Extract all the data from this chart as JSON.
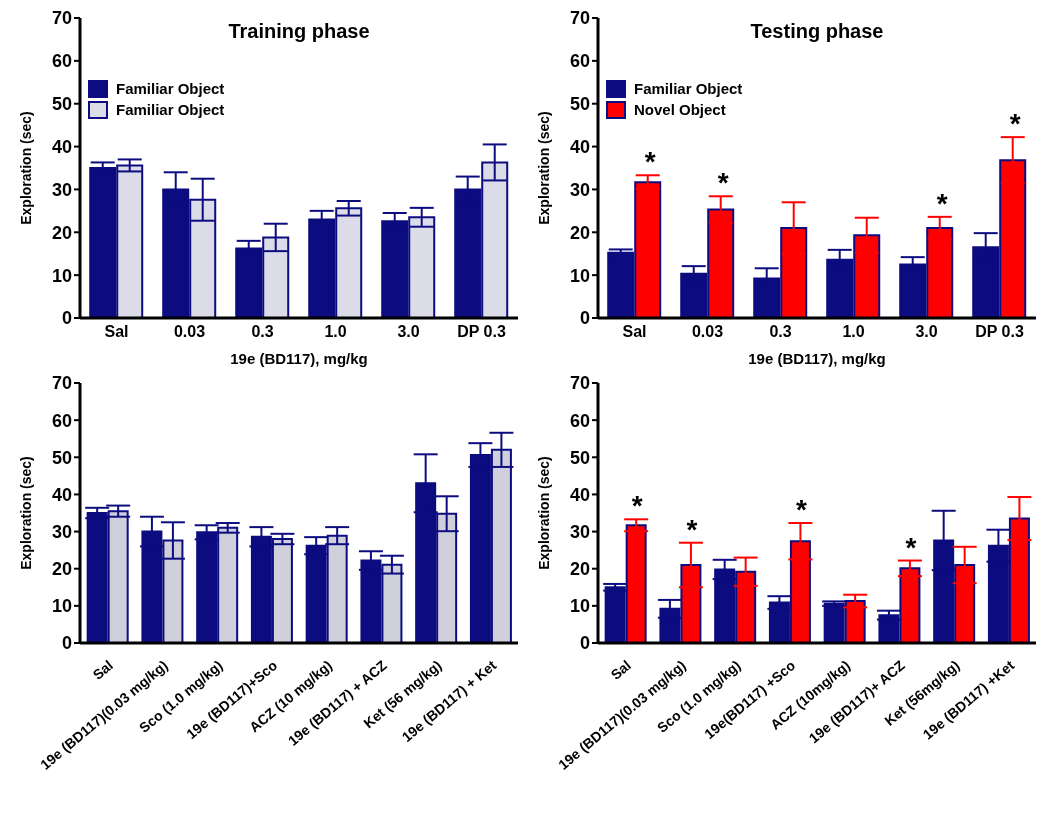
{
  "chart_data": [
    {
      "type": "bar",
      "title": "Training phase",
      "xlabel": "19e (BD117), mg/kg",
      "ylabel": "Exploration (sec)",
      "categories": [
        "Sal",
        "0.03",
        "0.3",
        "1.0",
        "3.0",
        "DP 0.3"
      ],
      "series": [
        {
          "name": "Familiar Object",
          "color": "#0c0c80",
          "values": [
            35,
            30,
            16.2,
            23,
            22.6,
            30
          ],
          "errors": [
            1.3,
            4,
            1.8,
            2,
            1.9,
            3
          ]
        },
        {
          "name": "Familiar Object",
          "color": "#dcdce8",
          "values": [
            35.6,
            27.6,
            18.8,
            25.6,
            23.5,
            36.3
          ],
          "errors": [
            1.4,
            4.9,
            3.2,
            1.7,
            2.2,
            4.2
          ]
        }
      ],
      "ylim": [
        0,
        70
      ],
      "yticks": [
        0,
        10,
        20,
        30,
        40,
        50,
        60,
        70
      ],
      "legend": "top left"
    },
    {
      "type": "bar",
      "title": "Testing phase",
      "xlabel": "19e (BD117), mg/kg",
      "ylabel": "Exploration (sec)",
      "categories": [
        "Sal",
        "0.03",
        "0.3",
        "1.0",
        "3.0",
        "DP 0.3"
      ],
      "series": [
        {
          "name": "Familiar Object",
          "color": "#0c0c80",
          "values": [
            15.2,
            10.3,
            9.2,
            13.6,
            12.5,
            16.5
          ],
          "errors": [
            0.8,
            1.8,
            2.4,
            2.3,
            1.7,
            3.3
          ]
        },
        {
          "name": "Novel Object",
          "color": "#ff0000",
          "values": [
            31.7,
            25.3,
            21,
            19.3,
            21,
            36.8
          ],
          "errors": [
            1.6,
            3.1,
            6,
            4.1,
            2.6,
            5.4
          ]
        }
      ],
      "ylim": [
        0,
        70
      ],
      "yticks": [
        0,
        10,
        20,
        30,
        40,
        50,
        60,
        70
      ],
      "legend": "top left",
      "annotations": [
        {
          "text": "*",
          "x": "Sal",
          "y": 31.7
        },
        {
          "text": "*",
          "x": "0.03",
          "y": 25.3
        },
        {
          "text": "*",
          "x": "3.0",
          "y": 21
        },
        {
          "text": "*",
          "x": "DP 0.3",
          "y": 36.8
        }
      ]
    },
    {
      "type": "bar",
      "ylabel": "Exploration (sec)",
      "categories": [
        "Sal",
        "19e (BD117)(0.03 mg/kg)",
        "Sco (1.0 mg/kg)",
        "19e (BD117)+Sco",
        "ACZ (10 mg/kg)",
        "19e (BD117) + ACZ",
        "Ket (56 mg/kg)",
        "19e (BD117) + Ket"
      ],
      "series": [
        {
          "color": "#0c0c80",
          "values": [
            35,
            30,
            29.8,
            28.6,
            26.2,
            22.2,
            43,
            50.6
          ],
          "errors": [
            1.4,
            4,
            1.9,
            2.6,
            2.3,
            2.5,
            7.8,
            3.2
          ]
        },
        {
          "color": "#d0d0dc",
          "values": [
            35.5,
            27.6,
            31,
            28,
            28.9,
            21.1,
            34.8,
            52
          ],
          "errors": [
            1.5,
            4.9,
            1.3,
            1.4,
            2.3,
            2.4,
            4.7,
            4.6
          ]
        }
      ],
      "ylim": [
        0,
        70
      ],
      "yticks": [
        0,
        10,
        20,
        30,
        40,
        50,
        60,
        70
      ]
    },
    {
      "type": "bar",
      "ylabel": "Exploration (sec)",
      "categories": [
        "Sal",
        "19e (BD117)(0.03 mg/kg)",
        "Sco (1.0 mg/kg)",
        "19e(BD117) +Sco",
        "ACZ (10mg/kg)",
        "19e (BD117)+ ACZ",
        "Ket (56mg/kg)",
        "19e (BD117) +Ket"
      ],
      "series": [
        {
          "color": "#0c0c80",
          "values": [
            15,
            9.2,
            19.8,
            10.9,
            10.6,
            7.5,
            27.6,
            26.2
          ],
          "errors": [
            0.9,
            2.4,
            2.6,
            1.7,
            0.6,
            1.2,
            8,
            4.3
          ]
        },
        {
          "color": "#ff0000",
          "values": [
            31.7,
            21,
            19.2,
            27.4,
            11.3,
            20.1,
            21,
            33.5
          ],
          "errors": [
            1.6,
            6,
            3.8,
            4.9,
            1.7,
            2.1,
            4.9,
            5.8
          ]
        }
      ],
      "ylim": [
        0,
        70
      ],
      "yticks": [
        0,
        10,
        20,
        30,
        40,
        50,
        60,
        70
      ],
      "annotations": [
        {
          "text": "*",
          "x": "Sal",
          "y": 31.7
        },
        {
          "text": "*",
          "x": "19e (BD117)(0.03 mg/kg)",
          "y": 21
        },
        {
          "text": "*",
          "x": "19e(BD117) +Sco",
          "y": 27.4
        },
        {
          "text": "*",
          "x": "19e (BD117)+ ACZ",
          "y": 20.1
        }
      ]
    }
  ]
}
